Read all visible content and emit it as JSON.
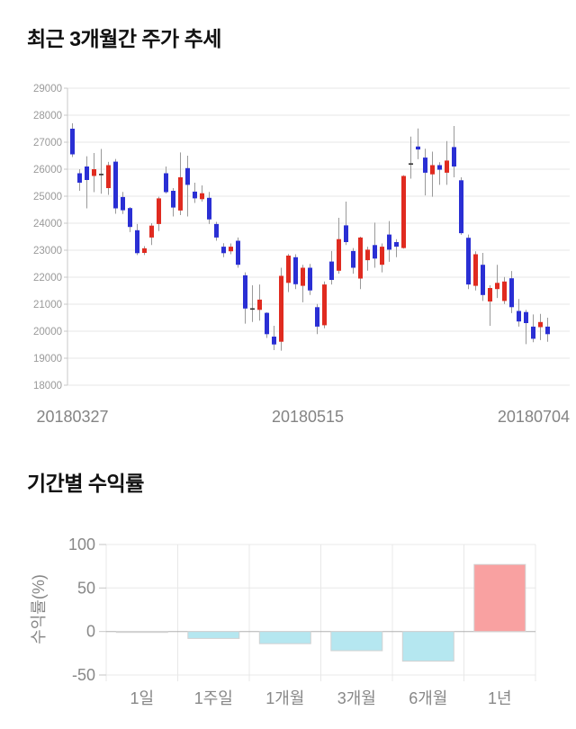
{
  "chart_data": [
    {
      "type": "candlestick",
      "title": "최근 3개월간 주가 추세",
      "x_tick_labels": [
        "20180327",
        "20180515",
        "20180704"
      ],
      "y_ticks": [
        29000,
        28000,
        27000,
        26000,
        25000,
        24000,
        23000,
        22000,
        21000,
        20000,
        19000,
        18000
      ],
      "ylim": [
        18000,
        29000
      ],
      "grid": true,
      "up_color": "#e02b20",
      "down_color": "#2a2fd4",
      "doji_color": "#333333",
      "wick_color": "#9a9a9a",
      "grid_color": "#e7e7e7",
      "axis_color": "#c9c9c9",
      "y_tick_label_color": "#9a9a9a",
      "x_tick_label_color": "#848484",
      "candles_format": "[open, high, low, close] in KRW, oldest to newest",
      "candles": [
        [
          27500,
          27700,
          26450,
          26550
        ],
        [
          25850,
          26000,
          25200,
          25500
        ],
        [
          26100,
          26480,
          24550,
          25600
        ],
        [
          25750,
          26600,
          25150,
          26000
        ],
        [
          25830,
          26750,
          25090,
          25790
        ],
        [
          25300,
          26270,
          25050,
          26150
        ],
        [
          26280,
          26380,
          24350,
          24550
        ],
        [
          24970,
          25160,
          24340,
          24480
        ],
        [
          24560,
          24600,
          23670,
          23860
        ],
        [
          23740,
          23970,
          22820,
          22890
        ],
        [
          22900,
          23150,
          22820,
          23070
        ],
        [
          23470,
          24000,
          23190,
          23910
        ],
        [
          23970,
          24980,
          23710,
          24920
        ],
        [
          25850,
          26100,
          25100,
          25150
        ],
        [
          25200,
          25300,
          24250,
          24580
        ],
        [
          24470,
          26620,
          24300,
          25700
        ],
        [
          26040,
          26500,
          24250,
          25420
        ],
        [
          25170,
          25500,
          24750,
          24920
        ],
        [
          24890,
          25400,
          24800,
          25110
        ],
        [
          24940,
          25160,
          23970,
          24140
        ],
        [
          23970,
          24050,
          23350,
          23470
        ],
        [
          23130,
          23260,
          22740,
          22890
        ],
        [
          22960,
          23250,
          22850,
          23130
        ],
        [
          23350,
          23470,
          22350,
          22460
        ],
        [
          22070,
          22180,
          20280,
          20840
        ],
        [
          20850,
          21700,
          20340,
          20820
        ],
        [
          20790,
          21730,
          20390,
          21170
        ],
        [
          20680,
          20700,
          19750,
          19890
        ],
        [
          19800,
          20200,
          19300,
          19510
        ],
        [
          19610,
          22350,
          19280,
          22050
        ],
        [
          21790,
          22860,
          21450,
          22800
        ],
        [
          22740,
          22850,
          21560,
          21740
        ],
        [
          21680,
          22460,
          21070,
          22350
        ],
        [
          22350,
          22490,
          21340,
          21510
        ],
        [
          20890,
          21010,
          19890,
          20170
        ],
        [
          20220,
          21840,
          20110,
          21730
        ],
        [
          22580,
          22970,
          21730,
          21900
        ],
        [
          22240,
          24200,
          22130,
          23410
        ],
        [
          23920,
          24800,
          23190,
          23300
        ],
        [
          22970,
          23080,
          22130,
          22350
        ],
        [
          21950,
          23500,
          21560,
          23470
        ],
        [
          22630,
          23130,
          22240,
          23020
        ],
        [
          23190,
          24020,
          22350,
          22690
        ],
        [
          22460,
          23250,
          22180,
          23130
        ],
        [
          23580,
          24080,
          22570,
          23020
        ],
        [
          23300,
          23410,
          22740,
          23130
        ],
        [
          23080,
          25780,
          23060,
          25750
        ],
        [
          26190,
          27210,
          25650,
          26220
        ],
        [
          26840,
          27510,
          26370,
          26730
        ],
        [
          26430,
          26760,
          25030,
          25870
        ],
        [
          25810,
          26650,
          24980,
          26150
        ],
        [
          26150,
          26260,
          25420,
          25980
        ],
        [
          25870,
          27040,
          25420,
          26320
        ],
        [
          26820,
          27600,
          25700,
          26100
        ],
        [
          25590,
          25700,
          23570,
          23630
        ],
        [
          23460,
          23580,
          21560,
          21730
        ],
        [
          21680,
          22960,
          21510,
          22850
        ],
        [
          22460,
          22900,
          21120,
          21340
        ],
        [
          21100,
          21700,
          20200,
          21600
        ],
        [
          21560,
          22460,
          21230,
          21790
        ],
        [
          21120,
          22010,
          21010,
          21840
        ],
        [
          21960,
          22230,
          20670,
          20890
        ],
        [
          20750,
          21190,
          20170,
          20360
        ],
        [
          20710,
          20790,
          19520,
          20300
        ],
        [
          20170,
          20620,
          19590,
          19720
        ],
        [
          20150,
          20640,
          19670,
          20340
        ],
        [
          20170,
          20500,
          19610,
          19890
        ]
      ]
    },
    {
      "type": "bar",
      "title": "기간별 수익률",
      "ylabel": "수익률(%)",
      "categories": [
        "1일",
        "1주일",
        "1개월",
        "3개월",
        "6개월",
        "1년"
      ],
      "values": [
        -1,
        -8,
        -14,
        -22,
        -34,
        77
      ],
      "y_ticks": [
        100,
        50,
        0,
        -50
      ],
      "ylim": [
        -60,
        110
      ],
      "grid": true,
      "positive_color": "#f9a1a1",
      "negative_color": "#b5e7f0",
      "bar_edge_color": "#d2d2d2",
      "grid_color": "#e8e8e8",
      "zero_line_color": "#b0b0b0",
      "tick_label_color": "#888888"
    }
  ]
}
